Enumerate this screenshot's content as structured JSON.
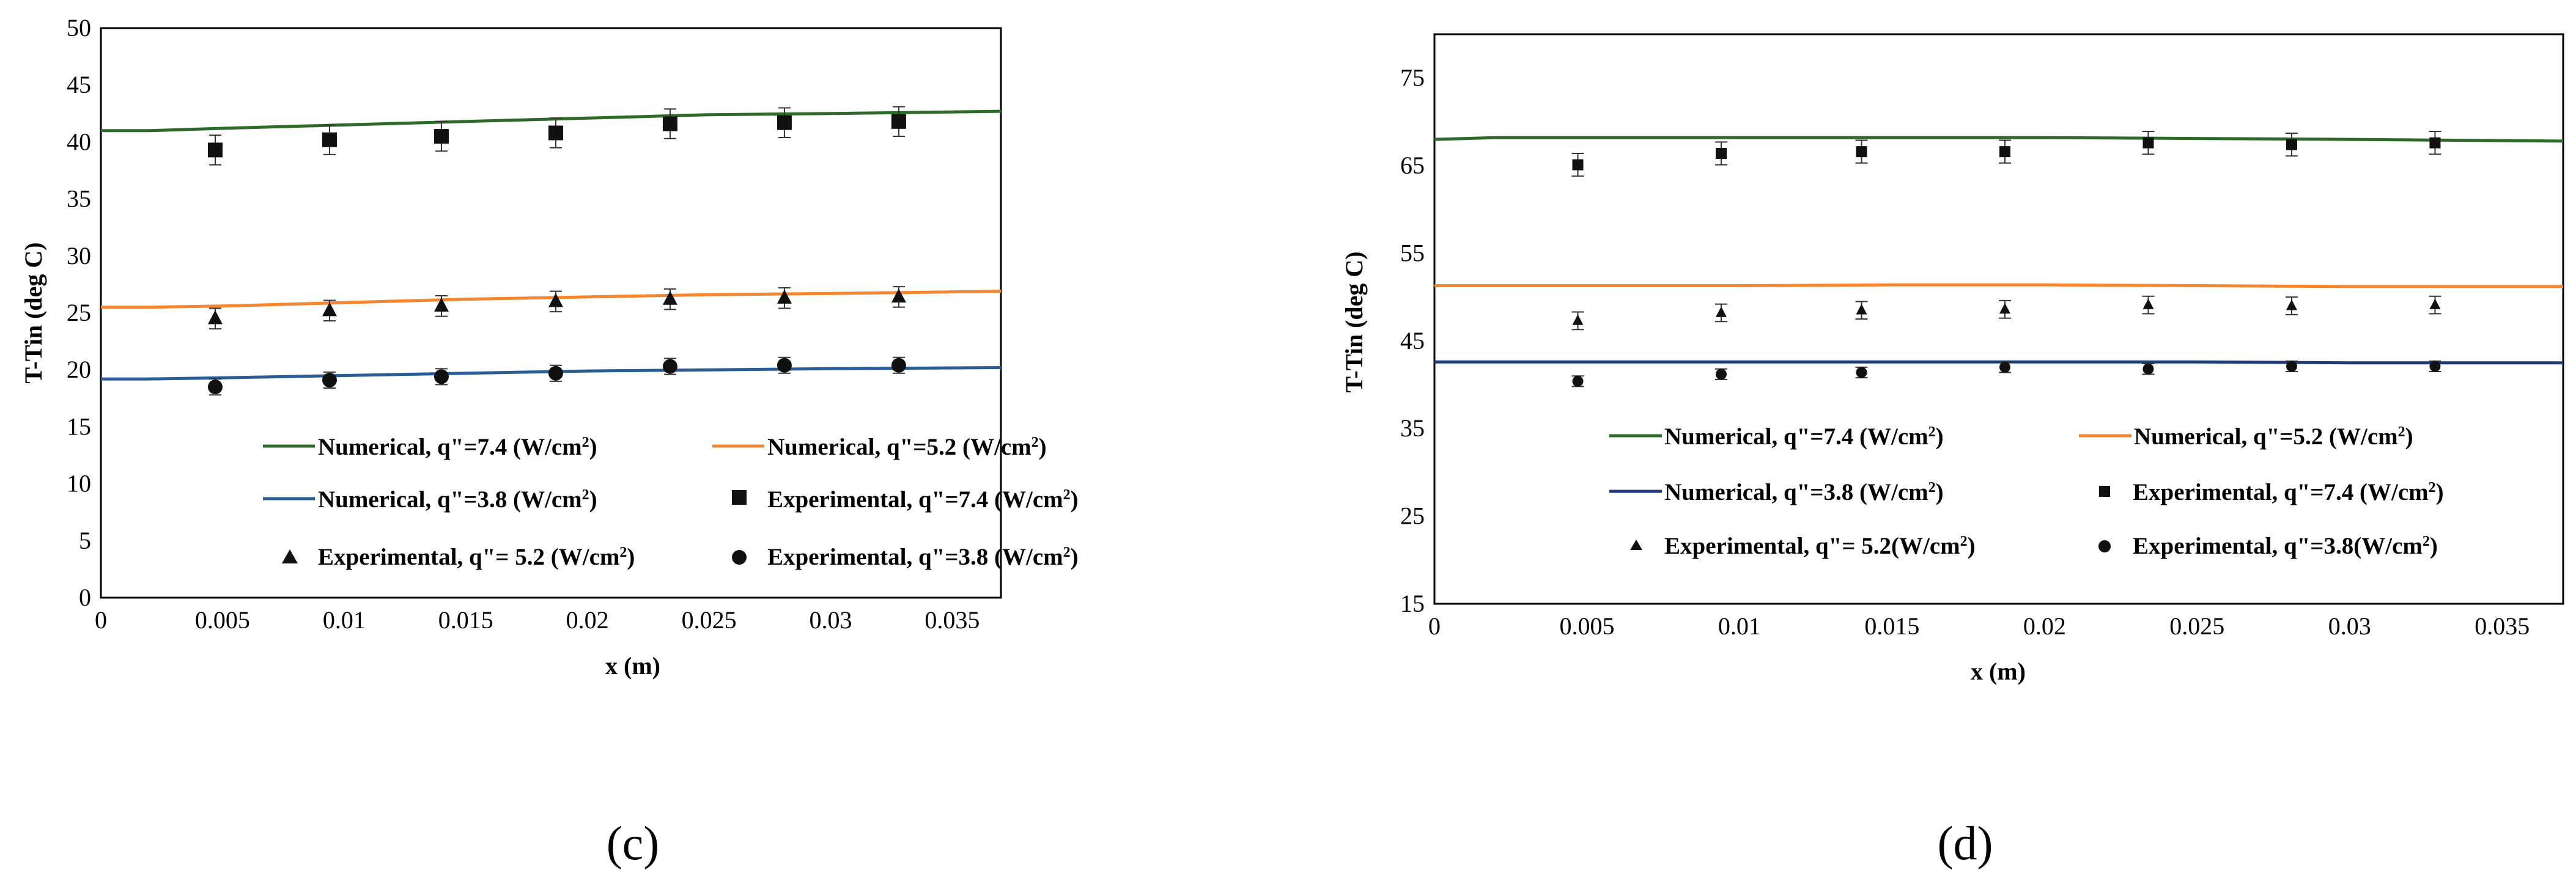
{
  "colors": {
    "numerical_7_4": "#2e6b28",
    "numerical_5_2": "#f4862f",
    "numerical_3_8": "#2a5c96",
    "numerical_3_8_d": "#1f3a78",
    "experimental": "#111111",
    "axis": "#000000"
  },
  "chart_data": [
    {
      "type": "line",
      "panel_label": "(c)",
      "title": "",
      "xlabel": "x (m)",
      "ylabel": "T-Tin (deg C)",
      "xlim": [
        0,
        0.037
      ],
      "ylim": [
        0,
        50
      ],
      "x_ticks": [
        0,
        0.005,
        0.01,
        0.015,
        0.02,
        0.025,
        0.03,
        0.035
      ],
      "x_tick_labels": [
        "0",
        "0.005",
        "0.01",
        "0.015",
        "0.02",
        "0.025",
        "0.03",
        "0.035"
      ],
      "y_ticks": [
        0,
        5,
        10,
        15,
        20,
        25,
        30,
        35,
        40,
        45,
        50
      ],
      "y_tick_labels": [
        "0",
        "5",
        "10",
        "15",
        "20",
        "25",
        "30",
        "35",
        "40",
        "45",
        "50"
      ],
      "grid": false,
      "legend_position": "lower-center",
      "series": [
        {
          "name": "Numerical, q''=7.4 (W/cm2)",
          "label": "Numerical, q\"=7.4 (W/cm",
          "kind": "line",
          "color_key": "numerical_7_4",
          "x": [
            0,
            0.002,
            0.005,
            0.01,
            0.015,
            0.02,
            0.025,
            0.03,
            0.037
          ],
          "y": [
            41.0,
            41.0,
            41.2,
            41.5,
            41.8,
            42.1,
            42.4,
            42.5,
            42.7
          ]
        },
        {
          "name": "Numerical, q''=5.2 (W/cm2)",
          "label": "Numerical, q\"=5.2 (W/cm",
          "kind": "line",
          "color_key": "numerical_5_2",
          "x": [
            0,
            0.002,
            0.005,
            0.01,
            0.015,
            0.02,
            0.025,
            0.03,
            0.037
          ],
          "y": [
            25.5,
            25.5,
            25.6,
            25.9,
            26.2,
            26.4,
            26.6,
            26.7,
            26.9
          ]
        },
        {
          "name": "Numerical, q''=3.8 (W/cm2)",
          "label": "Numerical, q\"=3.8 (W/cm",
          "kind": "line",
          "color_key": "numerical_3_8",
          "x": [
            0,
            0.002,
            0.005,
            0.01,
            0.015,
            0.02,
            0.025,
            0.03,
            0.037
          ],
          "y": [
            19.2,
            19.2,
            19.3,
            19.5,
            19.7,
            19.9,
            20.0,
            20.1,
            20.2
          ]
        },
        {
          "name": "Experimental, q''=7.4 (W/cm2)",
          "label": "Experimental, q\"=7.4 (W/cm",
          "kind": "marker",
          "marker": "square",
          "color_key": "experimental",
          "x": [
            0.0047,
            0.0094,
            0.014,
            0.0187,
            0.0234,
            0.0281,
            0.0328
          ],
          "y": [
            39.3,
            40.2,
            40.5,
            40.8,
            41.6,
            41.7,
            41.8
          ],
          "err": [
            1.3,
            1.3,
            1.3,
            1.3,
            1.3,
            1.3,
            1.3
          ]
        },
        {
          "name": "Experimental, q''= 5.2 (W/cm2)",
          "label": "Experimental, q\"= 5.2 (W/cm",
          "kind": "marker",
          "marker": "triangle",
          "color_key": "experimental",
          "x": [
            0.0047,
            0.0094,
            0.014,
            0.0187,
            0.0234,
            0.0281,
            0.0328
          ],
          "y": [
            24.5,
            25.2,
            25.6,
            26.0,
            26.2,
            26.3,
            26.4
          ],
          "err": [
            0.9,
            0.9,
            0.9,
            0.9,
            0.9,
            0.9,
            0.9
          ]
        },
        {
          "name": "Experimental, q''=3.8 (W/cm2)",
          "label": "Experimental, q\"=3.8 (W/cm",
          "kind": "marker",
          "marker": "circle",
          "color_key": "experimental",
          "x": [
            0.0047,
            0.0094,
            0.014,
            0.0187,
            0.0234,
            0.0281,
            0.0328
          ],
          "y": [
            18.5,
            19.1,
            19.4,
            19.7,
            20.3,
            20.4,
            20.4
          ],
          "err": [
            0.7,
            0.7,
            0.7,
            0.7,
            0.7,
            0.7,
            0.7
          ]
        }
      ]
    },
    {
      "type": "line",
      "panel_label": "(d)",
      "title": "",
      "xlabel": "x (m)",
      "ylabel": "T-Tin (deg C)",
      "xlim": [
        0,
        0.037
      ],
      "ylim": [
        15,
        80
      ],
      "x_ticks": [
        0,
        0.005,
        0.01,
        0.015,
        0.02,
        0.025,
        0.03,
        0.035
      ],
      "x_tick_labels": [
        "0",
        "0.005",
        "0.01",
        "0.015",
        "0.02",
        "0.025",
        "0.03",
        "0.035"
      ],
      "y_ticks": [
        15,
        25,
        35,
        45,
        55,
        65,
        75
      ],
      "y_tick_labels": [
        "15",
        "25",
        "35",
        "45",
        "55",
        "65",
        "75"
      ],
      "grid": false,
      "legend_position": "lower-center",
      "series": [
        {
          "name": "Numerical, q''=7.4 (W/cm2)",
          "label": "Numerical, q\"=7.4 (W/cm",
          "kind": "line",
          "color_key": "numerical_7_4",
          "x": [
            0,
            0.002,
            0.005,
            0.01,
            0.015,
            0.02,
            0.025,
            0.03,
            0.037
          ],
          "y": [
            68.0,
            68.2,
            68.2,
            68.2,
            68.2,
            68.2,
            68.1,
            68.0,
            67.8
          ]
        },
        {
          "name": "Numerical, q''=5.2 (W/cm2)",
          "label": "Numerical, q\"=5.2 (W/cm",
          "kind": "line",
          "color_key": "numerical_5_2",
          "x": [
            0,
            0.005,
            0.01,
            0.015,
            0.02,
            0.025,
            0.03,
            0.037
          ],
          "y": [
            51.3,
            51.3,
            51.3,
            51.4,
            51.4,
            51.3,
            51.2,
            51.2
          ]
        },
        {
          "name": "Numerical, q''=3.8 (W/cm2)",
          "label": "Numerical, q\"=3.8 (W/cm",
          "kind": "line",
          "color_key": "numerical_3_8_d",
          "x": [
            0,
            0.005,
            0.01,
            0.015,
            0.02,
            0.025,
            0.03,
            0.037
          ],
          "y": [
            42.6,
            42.6,
            42.6,
            42.6,
            42.6,
            42.6,
            42.5,
            42.5
          ]
        },
        {
          "name": "Experimental, q''=7.4 (W/cm2)",
          "label": "Experimental, q\"=7.4 (W/cm",
          "kind": "marker",
          "marker": "square",
          "color_key": "experimental",
          "x": [
            0.0047,
            0.0094,
            0.014,
            0.0187,
            0.0234,
            0.0281,
            0.0328
          ],
          "y": [
            65.1,
            66.4,
            66.6,
            66.6,
            67.6,
            67.4,
            67.6
          ],
          "err": [
            1.3,
            1.3,
            1.3,
            1.3,
            1.3,
            1.3,
            1.3
          ]
        },
        {
          "name": "Experimental, q''= 5.2 (W/cm2)",
          "label": "Experimental, q\"= 5.2(W/cm",
          "kind": "marker",
          "marker": "triangle",
          "color_key": "experimental",
          "x": [
            0.0047,
            0.0094,
            0.014,
            0.0187,
            0.0234,
            0.0281,
            0.0328
          ],
          "y": [
            47.3,
            48.2,
            48.5,
            48.6,
            49.1,
            49.0,
            49.1
          ],
          "err": [
            1.0,
            1.0,
            1.0,
            1.0,
            1.0,
            1.0,
            1.0
          ]
        },
        {
          "name": "Experimental, q''=3.8 (W/cm2)",
          "label": "Experimental, q\"=3.8(W/cm",
          "kind": "marker",
          "marker": "circle",
          "color_key": "experimental",
          "x": [
            0.0047,
            0.0094,
            0.014,
            0.0187,
            0.0234,
            0.0281,
            0.0328
          ],
          "y": [
            40.4,
            41.2,
            41.4,
            42.0,
            41.8,
            42.1,
            42.1
          ],
          "err": [
            0.6,
            0.6,
            0.6,
            0.6,
            0.6,
            0.6,
            0.6
          ]
        }
      ]
    }
  ]
}
